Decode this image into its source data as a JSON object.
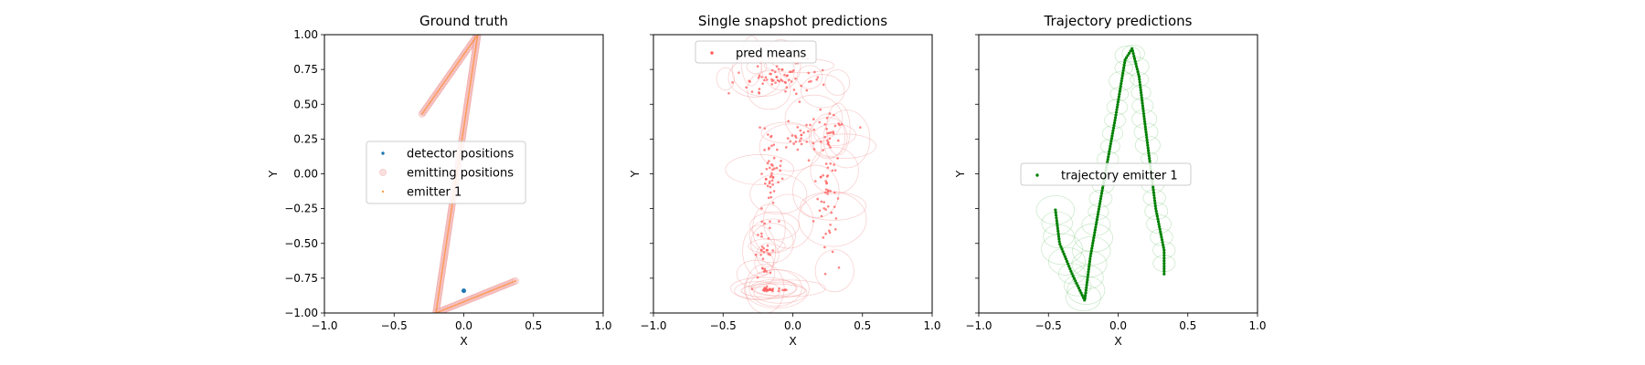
{
  "chart_data": [
    {
      "type": "scatter",
      "title": "Ground truth",
      "xlabel": "X",
      "ylabel": "Y",
      "xlim": [
        -1.0,
        1.0
      ],
      "ylim": [
        -1.0,
        1.0
      ],
      "xticks": [
        "−1.0",
        "−0.5",
        "0.0",
        "0.5",
        "1.0"
      ],
      "yticks": [
        "−1.00",
        "−0.75",
        "−0.50",
        "−0.25",
        "0.00",
        "0.25",
        "0.50",
        "0.75",
        "1.00"
      ],
      "legend_position": "center-left",
      "series": [
        {
          "name": "detector positions",
          "color": "#1f77b4",
          "marker": "dot",
          "points": [
            [
              0.0,
              -0.84
            ]
          ]
        },
        {
          "name": "emitting positions",
          "color": "#f4b6b6",
          "marker": "circle",
          "path": [
            [
              -0.3,
              0.43
            ],
            [
              0.1,
              1.0
            ],
            [
              -0.2,
              -1.0
            ],
            [
              0.37,
              -0.77
            ]
          ]
        },
        {
          "name": "emitter 1",
          "color": "#ff7f0e",
          "marker": "small-dot",
          "path": [
            [
              -0.3,
              0.43
            ],
            [
              0.1,
              1.0
            ],
            [
              -0.2,
              -1.0
            ],
            [
              0.37,
              -0.77
            ]
          ]
        }
      ]
    },
    {
      "type": "scatter",
      "title": "Single snapshot predictions",
      "xlabel": "X",
      "ylabel": "Y",
      "xlim": [
        -1.0,
        1.0
      ],
      "ylim": [
        -1.0,
        1.0
      ],
      "xticks": [
        "−1.0",
        "−0.5",
        "0.0",
        "0.5",
        "1.0"
      ],
      "legend_position": "upper-left",
      "series": [
        {
          "name": "pred means",
          "color": "#ff5a5a",
          "marker": "dot",
          "clusters": [
            {
              "center": [
                -0.1,
                0.7
              ],
              "spread": [
                0.25,
                0.1
              ],
              "count": 70
            },
            {
              "center": [
                0.15,
                0.3
              ],
              "spread": [
                0.2,
                0.12
              ],
              "count": 40
            },
            {
              "center": [
                -0.15,
                0.0
              ],
              "spread": [
                0.07,
                0.3
              ],
              "count": 50
            },
            {
              "center": [
                0.25,
                -0.1
              ],
              "spread": [
                0.07,
                0.45
              ],
              "count": 60
            },
            {
              "center": [
                -0.2,
                -0.55
              ],
              "spread": [
                0.06,
                0.2
              ],
              "count": 30
            },
            {
              "center": [
                -0.17,
                -0.83
              ],
              "spread": [
                0.08,
                0.015
              ],
              "count": 28
            }
          ]
        }
      ]
    },
    {
      "type": "line",
      "title": "Trajectory predictions",
      "xlabel": "X",
      "ylabel": "Y",
      "xlim": [
        -1.0,
        1.0
      ],
      "ylim": [
        -1.0,
        1.0
      ],
      "xticks": [
        "−1.0",
        "−0.5",
        "0.0",
        "0.5",
        "1.0"
      ],
      "legend_position": "center-left",
      "series": [
        {
          "name": "trajectory emitter 1",
          "color": "#008000",
          "marker": "dot",
          "path": [
            [
              -0.45,
              -0.26
            ],
            [
              -0.42,
              -0.5
            ],
            [
              -0.33,
              -0.72
            ],
            [
              -0.24,
              -0.91
            ],
            [
              -0.2,
              -0.6
            ],
            [
              -0.12,
              -0.15
            ],
            [
              -0.02,
              0.4
            ],
            [
              0.05,
              0.82
            ],
            [
              0.1,
              0.9
            ],
            [
              0.15,
              0.7
            ],
            [
              0.2,
              0.3
            ],
            [
              0.27,
              -0.25
            ],
            [
              0.33,
              -0.55
            ],
            [
              0.33,
              -0.72
            ]
          ]
        }
      ]
    }
  ]
}
